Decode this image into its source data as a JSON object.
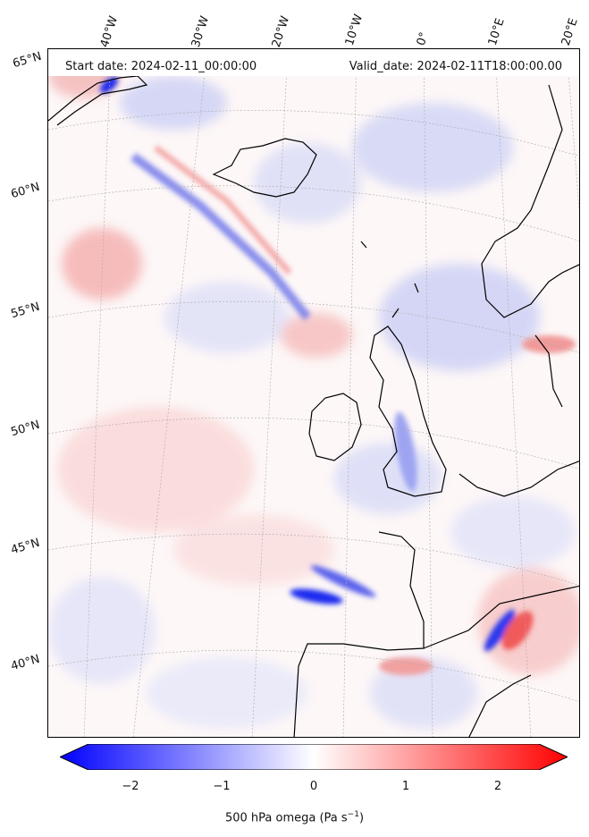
{
  "map": {
    "start_date": "Start date: 2024-02-11_00:00:00",
    "valid_date": "Valid_date: 2024-02-11T18:00:00.00",
    "lon_labels": [
      "40°W",
      "30°W",
      "20°W",
      "10°W",
      "0°",
      "10°E",
      "20°E"
    ],
    "lat_labels": [
      "65°N",
      "60°N",
      "55°N",
      "50°N",
      "45°N",
      "40°N"
    ],
    "colors": {
      "negative": "#0000ff",
      "zero": "#ffffff",
      "positive": "#ff0000",
      "coast": "#000000",
      "grid": "#aaaaaa"
    }
  },
  "colorbar": {
    "label_text": "500 hPa omega (Pa s",
    "label_sup": "−1",
    "label_close": ")",
    "ticks": [
      "−2",
      "−1",
      "0",
      "1",
      "2"
    ],
    "range": [
      -2.6,
      2.6
    ]
  }
}
